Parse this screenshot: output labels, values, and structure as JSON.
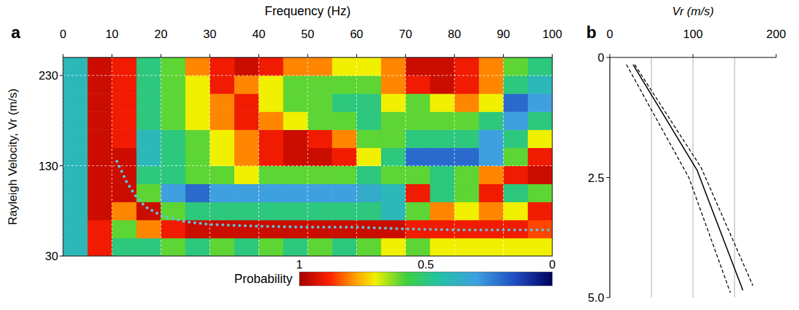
{
  "chart_data": [
    {
      "type": "heatmap",
      "label": "a",
      "xlabel": "Frequency (Hz)",
      "ylabel": "Rayleigh Velocity, Vr (m/s)",
      "xlim": [
        0,
        100
      ],
      "xticks": [
        0,
        10,
        20,
        30,
        40,
        50,
        60,
        70,
        80,
        90,
        100
      ],
      "ylim": [
        30,
        250
      ],
      "yticks": [
        30,
        130,
        230
      ],
      "grid": true,
      "x_bins": [
        0,
        5,
        10,
        15,
        20,
        25,
        30,
        35,
        40,
        45,
        50,
        55,
        60,
        65,
        70,
        75,
        80,
        85,
        90,
        95,
        100
      ],
      "y_bins": [
        30,
        50,
        70,
        90,
        110,
        130,
        150,
        170,
        190,
        210,
        230,
        250
      ],
      "cells": [
        [
          0.4,
          0.9,
          0.5,
          0.5,
          0.6,
          0.5,
          0.6,
          0.5,
          0.6,
          0.5,
          0.6,
          0.5,
          0.6,
          0.7,
          0.6,
          0.7,
          0.7,
          0.7,
          0.7,
          0.7
        ],
        [
          0.4,
          0.9,
          0.6,
          0.8,
          0.9,
          0.95,
          0.95,
          0.95,
          0.95,
          0.95,
          0.95,
          0.95,
          0.95,
          0.95,
          0.9,
          0.9,
          0.9,
          0.9,
          0.9,
          0.85
        ],
        [
          0.4,
          0.95,
          0.8,
          0.95,
          0.6,
          0.5,
          0.5,
          0.5,
          0.5,
          0.5,
          0.5,
          0.5,
          0.5,
          0.4,
          0.6,
          0.8,
          0.7,
          0.8,
          0.7,
          0.9
        ],
        [
          0.4,
          0.95,
          0.95,
          0.6,
          0.3,
          0.2,
          0.3,
          0.3,
          0.3,
          0.3,
          0.3,
          0.3,
          0.35,
          0.4,
          0.9,
          0.5,
          0.6,
          0.9,
          0.5,
          0.6
        ],
        [
          0.4,
          0.95,
          0.95,
          0.5,
          0.5,
          0.6,
          0.6,
          0.7,
          0.6,
          0.6,
          0.6,
          0.6,
          0.5,
          0.6,
          0.6,
          0.5,
          0.6,
          0.8,
          0.9,
          0.95
        ],
        [
          0.4,
          0.95,
          0.95,
          0.4,
          0.5,
          0.6,
          0.7,
          0.8,
          0.9,
          0.95,
          0.95,
          0.9,
          0.7,
          0.5,
          0.2,
          0.2,
          0.2,
          0.3,
          0.6,
          0.9
        ],
        [
          0.4,
          0.95,
          0.9,
          0.4,
          0.5,
          0.6,
          0.7,
          0.8,
          0.9,
          0.95,
          0.9,
          0.8,
          0.6,
          0.6,
          0.5,
          0.5,
          0.5,
          0.3,
          0.5,
          0.7
        ],
        [
          0.4,
          0.95,
          0.9,
          0.5,
          0.6,
          0.7,
          0.8,
          0.9,
          0.8,
          0.7,
          0.6,
          0.6,
          0.5,
          0.6,
          0.6,
          0.6,
          0.6,
          0.5,
          0.3,
          0.5
        ],
        [
          0.4,
          0.95,
          0.9,
          0.5,
          0.6,
          0.7,
          0.8,
          0.9,
          0.7,
          0.6,
          0.6,
          0.5,
          0.5,
          0.7,
          0.6,
          0.7,
          0.8,
          0.7,
          0.2,
          0.3
        ],
        [
          0.4,
          0.95,
          0.9,
          0.5,
          0.6,
          0.7,
          0.9,
          0.8,
          0.7,
          0.6,
          0.6,
          0.6,
          0.6,
          0.8,
          0.9,
          0.95,
          0.9,
          0.8,
          0.5,
          0.4
        ],
        [
          0.4,
          0.95,
          0.9,
          0.5,
          0.6,
          0.8,
          0.9,
          0.95,
          0.9,
          0.8,
          0.8,
          0.7,
          0.7,
          0.8,
          0.95,
          0.95,
          0.9,
          0.8,
          0.6,
          0.5
        ]
      ],
      "colorbar": {
        "label": "Probability",
        "lim": [
          1,
          0
        ],
        "ticks": [
          1,
          0.5,
          0
        ]
      },
      "series": [
        {
          "type": "line",
          "color": "#5cc8dc",
          "line_style": "dotted",
          "x": [
            11,
            13,
            15,
            17,
            20,
            25,
            30,
            40,
            50,
            60,
            65,
            70,
            80,
            90,
            100
          ],
          "values": [
            135,
            112,
            95,
            84,
            75,
            68,
            65,
            63,
            62,
            62,
            61,
            60,
            59,
            59,
            59
          ]
        }
      ]
    },
    {
      "type": "line",
      "label": "b",
      "xlabel": "Vr (m/s)",
      "xlim": [
        0,
        200
      ],
      "xticks": [
        0,
        100,
        200
      ],
      "ylim": [
        5,
        0
      ],
      "yticks": [
        0,
        2.5,
        {
          "value": 5,
          "label": "5.0"
        }
      ],
      "grid": true,
      "xgrid": [
        50,
        100,
        150
      ],
      "series": [
        {
          "color": "#000000",
          "line_style": "solid",
          "x": [
            28,
            105,
            160
          ],
          "values": [
            0.15,
            2.35,
            4.85
          ]
        },
        {
          "color": "#000000",
          "line_style": "dashed",
          "x": [
            20,
            95,
            145
          ],
          "values": [
            0.15,
            2.5,
            4.9
          ]
        },
        {
          "color": "#000000",
          "line_style": "dashed",
          "x": [
            30,
            110,
            172
          ],
          "values": [
            0.15,
            2.3,
            4.75
          ]
        }
      ]
    }
  ]
}
